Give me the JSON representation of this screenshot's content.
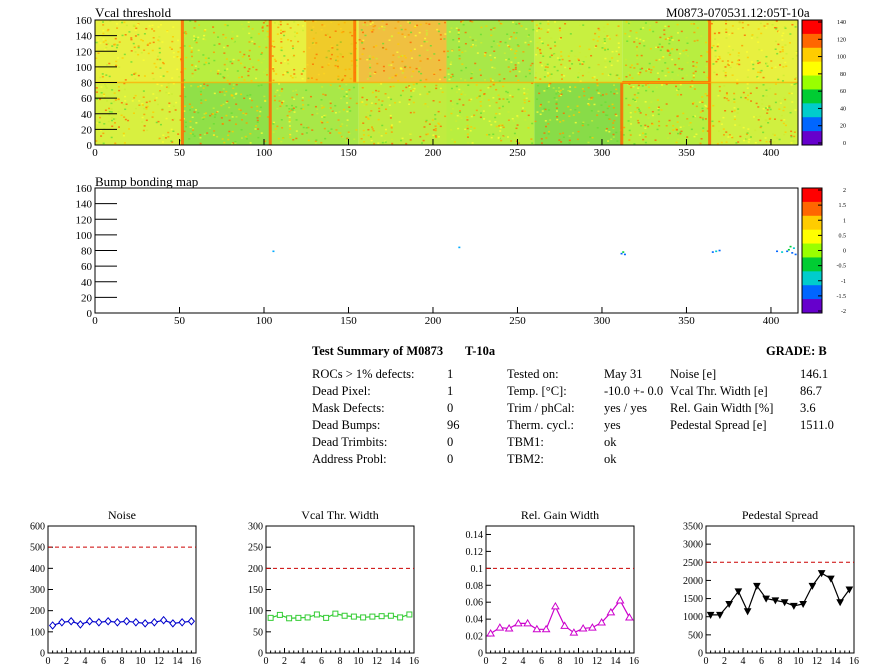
{
  "maps": [
    {
      "title": "Vcal threshold",
      "right_title": "M0873-070531.12:05T-10a",
      "x_ticks": [
        0,
        50,
        100,
        150,
        200,
        250,
        300,
        350,
        400
      ],
      "y_ticks": [
        0,
        20,
        40,
        60,
        80,
        100,
        120,
        140,
        160
      ],
      "palette": {
        "labels": [
          "140",
          "120",
          "100",
          "80",
          "60",
          "40",
          "20",
          "0"
        ],
        "colors": [
          "#ff0000",
          "#ff6600",
          "#ffcc00",
          "#ffff00",
          "#99ff00",
          "#00cc33",
          "#00cccc",
          "#0066ff",
          "#6600cc"
        ]
      }
    },
    {
      "title": "Bump bonding map",
      "right_title": "",
      "x_ticks": [
        0,
        50,
        100,
        150,
        200,
        250,
        300,
        350,
        400
      ],
      "y_ticks": [
        0,
        20,
        40,
        60,
        80,
        100,
        120,
        140,
        160
      ],
      "palette": {
        "labels": [
          "2",
          "1.5",
          "1",
          "0.5",
          "0",
          "-0.5",
          "-1",
          "-1.5",
          "-2"
        ],
        "colors": [
          "#ff0000",
          "#ff6600",
          "#ffcc00",
          "#ffff00",
          "#99ff00",
          "#00cc33",
          "#00cccc",
          "#0066ff",
          "#6600cc"
        ]
      }
    }
  ],
  "summary": {
    "title": "Test Summary of M0873",
    "title2": "T-10a",
    "grade": "GRADE:  B",
    "rows_left": [
      {
        "label": "ROCs > 1% defects:",
        "value": "1"
      },
      {
        "label": "Dead Pixel:",
        "value": "1"
      },
      {
        "label": "Mask Defects:",
        "value": "0"
      },
      {
        "label": "Dead Bumps:",
        "value": "96"
      },
      {
        "label": "Dead Trimbits:",
        "value": "0"
      },
      {
        "label": "Address Probl:",
        "value": "0"
      }
    ],
    "rows_mid": [
      {
        "label": "Tested on:",
        "value": "May 31"
      },
      {
        "label": "Temp. [°C]:",
        "value": "-10.0 +- 0.0"
      },
      {
        "label": "Trim / phCal:",
        "value": "yes / yes"
      },
      {
        "label": "Therm. cycl.:",
        "value": "yes"
      },
      {
        "label": "TBM1:",
        "value": "ok"
      },
      {
        "label": "TBM2:",
        "value": "ok"
      }
    ],
    "rows_right": [
      {
        "label": "Noise [e]",
        "value": "146.1"
      },
      {
        "label": "Vcal Thr. Width [e]",
        "value": "86.7"
      },
      {
        "label": "Rel. Gain Width [%]",
        "value": "3.6"
      },
      {
        "label": "Pedestal Spread [e]",
        "value": "1511.0"
      }
    ]
  },
  "chart_data": [
    {
      "type": "line",
      "title": "Noise",
      "x": [
        0,
        1,
        2,
        3,
        4,
        5,
        6,
        7,
        8,
        9,
        10,
        11,
        12,
        13,
        14,
        15
      ],
      "values": [
        130,
        145,
        150,
        135,
        150,
        145,
        150,
        145,
        150,
        145,
        140,
        145,
        155,
        140,
        145,
        150
      ],
      "xlim": [
        0,
        16
      ],
      "ylim": [
        0,
        600
      ],
      "x_ticks": [
        "0",
        "2",
        "4",
        "6",
        "8",
        "10",
        "12",
        "14",
        "16"
      ],
      "y_ticks": [
        "0",
        "100",
        "200",
        "300",
        "400",
        "500",
        "600"
      ],
      "threshold": 500,
      "color": "#0000cc",
      "marker": "diamond-open"
    },
    {
      "type": "line",
      "title": "Vcal Thr. Width",
      "x": [
        0,
        1,
        2,
        3,
        4,
        5,
        6,
        7,
        8,
        9,
        10,
        11,
        12,
        13,
        14,
        15
      ],
      "values": [
        83,
        90,
        82,
        83,
        84,
        91,
        83,
        93,
        88,
        86,
        84,
        86,
        87,
        88,
        84,
        91
      ],
      "xlim": [
        0,
        16
      ],
      "ylim": [
        0,
        300
      ],
      "x_ticks": [
        "0",
        "2",
        "4",
        "6",
        "8",
        "10",
        "12",
        "14",
        "16"
      ],
      "y_ticks": [
        "0",
        "50",
        "100",
        "150",
        "200",
        "250",
        "300"
      ],
      "threshold": 200,
      "color": "#33cc33",
      "marker": "square-open"
    },
    {
      "type": "line",
      "title": "Rel. Gain Width",
      "x": [
        0,
        1,
        2,
        3,
        4,
        5,
        6,
        7,
        8,
        9,
        10,
        11,
        12,
        13,
        14,
        15
      ],
      "values": [
        0.023,
        0.03,
        0.029,
        0.035,
        0.035,
        0.028,
        0.028,
        0.055,
        0.032,
        0.024,
        0.029,
        0.03,
        0.036,
        0.048,
        0.062,
        0.042
      ],
      "xlim": [
        0,
        16
      ],
      "ylim": [
        0,
        0.15
      ],
      "x_ticks": [
        "0",
        "2",
        "4",
        "6",
        "8",
        "10",
        "12",
        "14",
        "16"
      ],
      "y_ticks": [
        "0",
        "0.02",
        "0.04",
        "0.06",
        "0.08",
        "0.1",
        "0.12",
        "0.14"
      ],
      "threshold": 0.1,
      "color": "#cc00cc",
      "marker": "triangle-open"
    },
    {
      "type": "line",
      "title": "Pedestal Spread",
      "x": [
        0,
        1,
        2,
        3,
        4,
        5,
        6,
        7,
        8,
        9,
        10,
        11,
        12,
        13,
        14,
        15
      ],
      "values": [
        1050,
        1050,
        1350,
        1700,
        1150,
        1850,
        1500,
        1450,
        1400,
        1300,
        1350,
        1850,
        2200,
        2050,
        1400,
        1750
      ],
      "xlim": [
        0,
        16
      ],
      "ylim": [
        0,
        3500
      ],
      "x_ticks": [
        "0",
        "2",
        "4",
        "6",
        "8",
        "10",
        "12",
        "14",
        "16"
      ],
      "y_ticks": [
        "0",
        "500",
        "1000",
        "1500",
        "2000",
        "2500",
        "3000",
        "3500"
      ],
      "threshold": 2500,
      "color": "#000000",
      "marker": "triangle-down-filled"
    }
  ]
}
